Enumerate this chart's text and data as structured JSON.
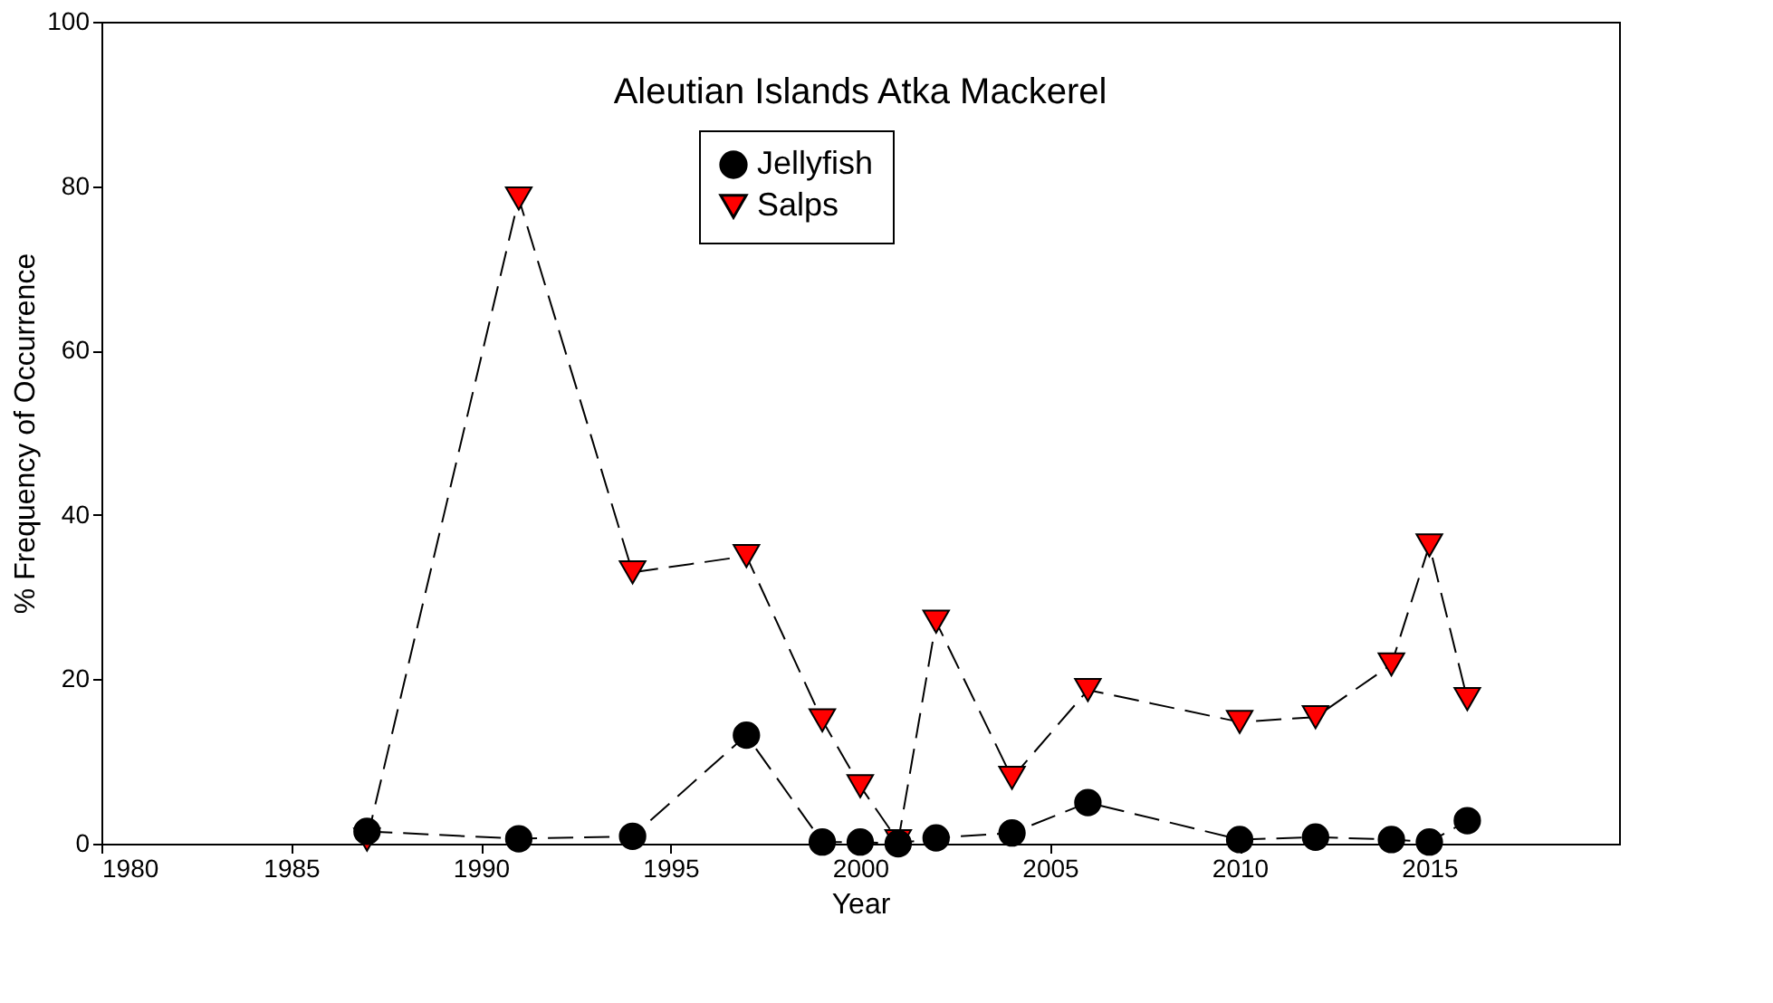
{
  "chart_data": {
    "type": "line",
    "title": "Aleutian Islands Atka Mackerel",
    "xlabel": "Year",
    "ylabel": "% Frequency of Occurrence",
    "x": [
      1987,
      1991,
      1994,
      1997,
      1999,
      2000,
      2001,
      2002,
      2004,
      2006,
      2010,
      2012,
      2014,
      2015,
      2016
    ],
    "series": [
      {
        "name": "Jellyfish",
        "color": "#000000",
        "marker": "circle",
        "values": [
          1.5,
          0.6,
          0.9,
          13.2,
          0.2,
          0.2,
          0,
          0.7,
          1.3,
          5,
          0.5,
          0.8,
          0.5,
          0.2,
          2.8
        ]
      },
      {
        "name": "Salps",
        "color": "#ff0000",
        "marker": "triangle",
        "values": [
          0.5,
          78.5,
          33,
          35,
          15,
          7,
          0.3,
          27,
          8,
          18.7,
          14.8,
          15.4,
          21.8,
          36.3,
          17.6
        ]
      }
    ],
    "xlim": [
      1980,
      2020
    ],
    "xticks": [
      1980,
      1985,
      1990,
      1995,
      2000,
      2005,
      2010,
      2015
    ],
    "ylim": [
      0,
      100
    ],
    "yticks": [
      0,
      20,
      40,
      60,
      80,
      100
    ],
    "grid": false,
    "legend": "top",
    "line_style": "dashed"
  }
}
